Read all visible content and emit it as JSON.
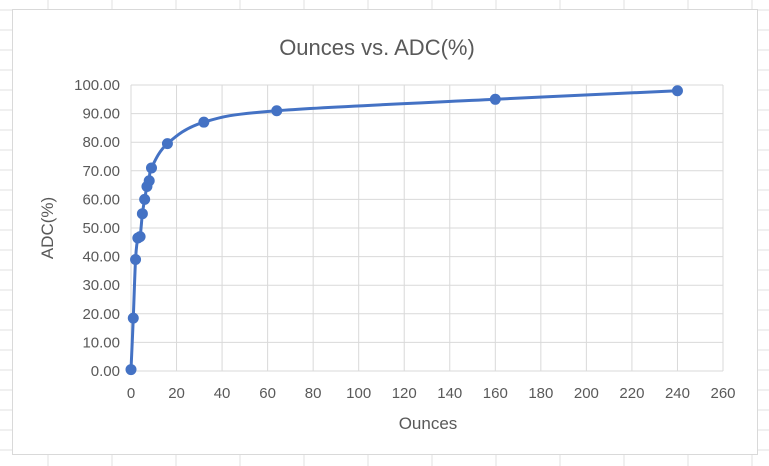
{
  "chart_data": {
    "type": "scatter",
    "title": "Ounces vs. ADC(%)",
    "xlabel": "Ounces",
    "ylabel": "ADC(%)",
    "xlim": [
      0,
      260
    ],
    "ylim": [
      0,
      100
    ],
    "x_ticks": [
      "0",
      "20",
      "40",
      "60",
      "80",
      "100",
      "120",
      "140",
      "160",
      "180",
      "200",
      "220",
      "240",
      "260"
    ],
    "y_ticks": [
      "0.00",
      "10.00",
      "20.00",
      "30.00",
      "40.00",
      "50.00",
      "60.00",
      "70.00",
      "80.00",
      "90.00",
      "100.00"
    ],
    "grid": true,
    "smooth_line": true,
    "marker": "circle",
    "series_color": "#4472c4",
    "series": [
      {
        "name": "",
        "x": [
          0,
          1,
          2,
          3,
          4,
          5,
          6,
          7,
          8,
          9,
          16,
          32,
          64,
          160,
          240
        ],
        "y": [
          0.5,
          18.5,
          39,
          46.5,
          47,
          55,
          60,
          64.5,
          66.5,
          71,
          79.5,
          87,
          91,
          95,
          98
        ]
      }
    ]
  }
}
